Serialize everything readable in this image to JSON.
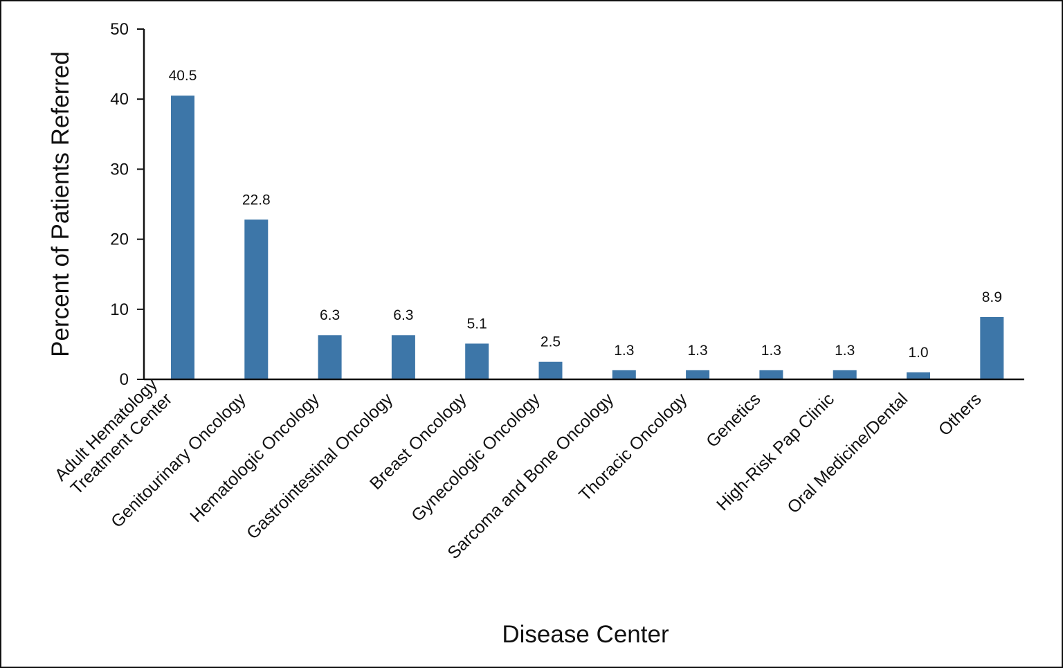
{
  "chart_data": {
    "type": "bar",
    "categories": [
      [
        "Adult Hematology",
        "Treatment Center"
      ],
      [
        "Genitourinary Oncology"
      ],
      [
        "Hematologic Oncology"
      ],
      [
        "Gastrointestinal Oncology"
      ],
      [
        "Breast Oncology"
      ],
      [
        "Gynecologic Oncology"
      ],
      [
        "Sarcoma and Bone Oncology"
      ],
      [
        "Thoracic Oncology"
      ],
      [
        "Genetics"
      ],
      [
        "High-Risk Pap Clinic"
      ],
      [
        "Oral Medicine/Dental"
      ],
      [
        "Others"
      ]
    ],
    "values": [
      40.5,
      22.8,
      6.3,
      6.3,
      5.1,
      2.5,
      1.3,
      1.3,
      1.3,
      1.3,
      1.0,
      8.9
    ],
    "data_labels": [
      "40.5",
      "22.8",
      "6.3",
      "6.3",
      "5.1",
      "2.5",
      "1.3",
      "1.3",
      "1.3",
      "1.3",
      "1.0",
      "8.9"
    ],
    "xlabel": "Disease Center",
    "ylabel": "Percent of Patients Referred",
    "ylim": [
      0,
      50
    ],
    "yticks": [
      "0",
      "10",
      "20",
      "30",
      "40",
      "50"
    ],
    "grid": false,
    "legend": "none",
    "bar_color": "#3d76a8",
    "axis_color": "#111111"
  }
}
